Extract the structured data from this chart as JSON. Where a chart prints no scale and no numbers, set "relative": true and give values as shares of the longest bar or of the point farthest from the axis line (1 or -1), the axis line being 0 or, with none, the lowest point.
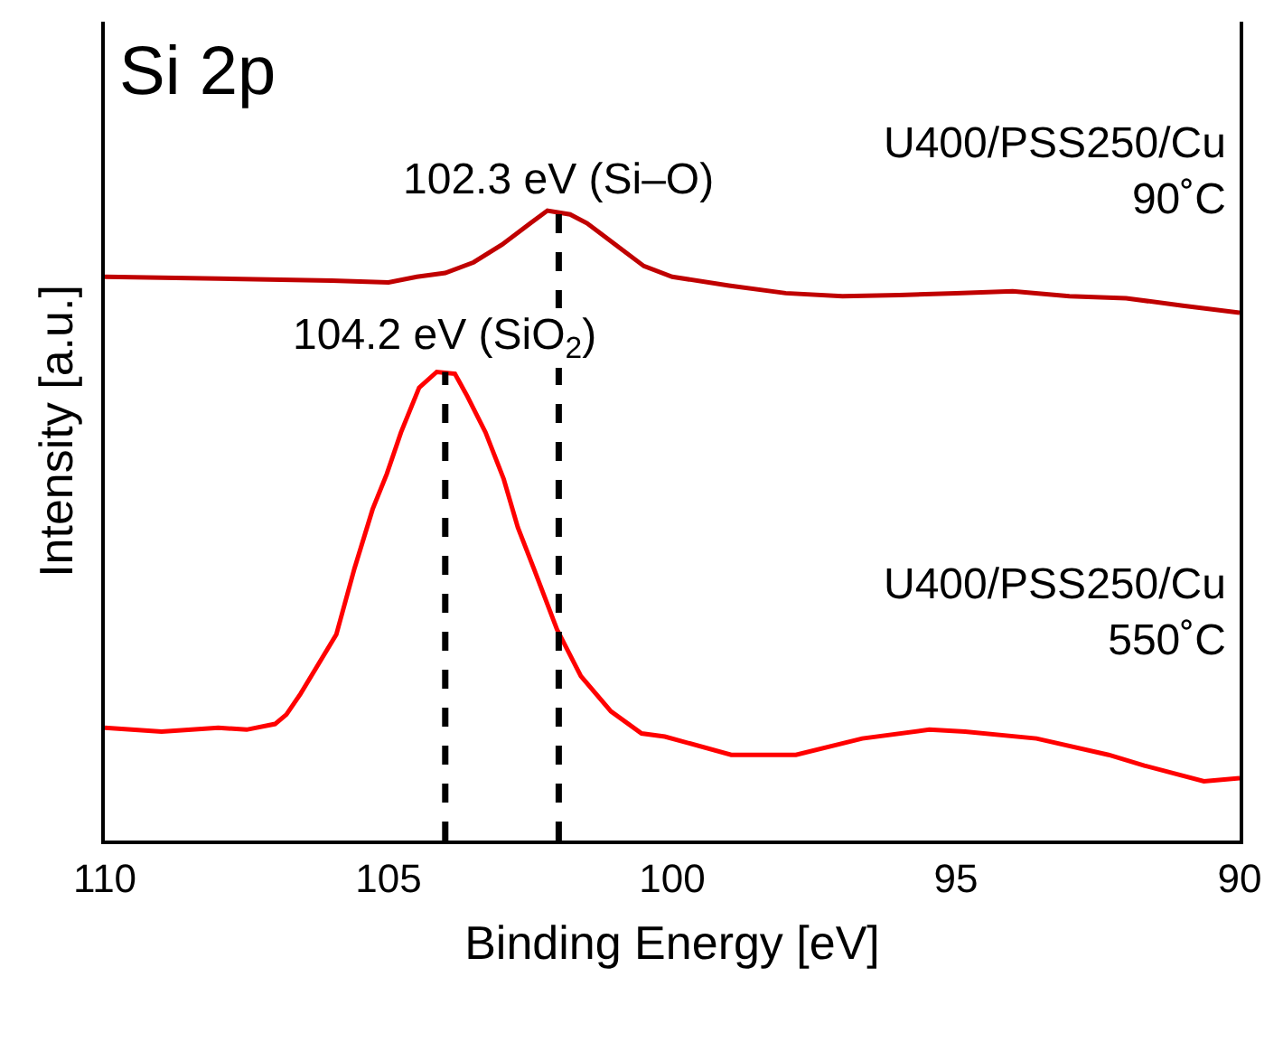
{
  "chart_data": {
    "type": "line",
    "relative": true,
    "xlabel": "Binding Energy [eV]",
    "ylabel": "Intensity [a.u.]",
    "xlim": [
      110,
      90
    ],
    "xticks": [
      110,
      105,
      100,
      95,
      90
    ],
    "tick_labels": "x",
    "legend": false,
    "marker": "none",
    "line_style": "solid",
    "series": [
      {
        "name": "U400/PSS250/Cu\n90˚C",
        "color": "#c00000",
        "x": [
          110,
          108,
          106,
          105,
          104.5,
          104,
          103.5,
          103,
          102.5,
          102.2,
          101.8,
          101.5,
          101,
          100.5,
          100,
          99,
          98,
          97,
          96,
          95,
          94,
          93,
          92,
          91,
          90
        ],
        "values": [
          0.895,
          0.892,
          0.889,
          0.886,
          0.895,
          0.901,
          0.918,
          0.946,
          0.98,
          1.0,
          0.994,
          0.98,
          0.946,
          0.912,
          0.895,
          0.881,
          0.869,
          0.864,
          0.866,
          0.869,
          0.872,
          0.864,
          0.861,
          0.849,
          0.838
        ]
      },
      {
        "name": "U400/PSS250/Cu\n550˚C",
        "color": "#ff0000",
        "x": [
          110,
          109,
          108,
          107.5,
          107,
          106.8,
          106.55,
          105.92,
          105.6,
          105.28,
          105.03,
          104.78,
          104.46,
          104.15,
          103.83,
          103.61,
          103.29,
          102.97,
          102.72,
          102.44,
          102.03,
          101.61,
          101.08,
          100.54,
          100.13,
          98.96,
          97.82,
          96.65,
          95.47,
          94.84,
          93.58,
          92.31,
          91.68,
          90.63,
          90
        ],
        "values": [
          0.179,
          0.173,
          0.179,
          0.176,
          0.185,
          0.2,
          0.233,
          0.327,
          0.432,
          0.526,
          0.582,
          0.648,
          0.719,
          0.744,
          0.741,
          0.705,
          0.648,
          0.574,
          0.497,
          0.432,
          0.335,
          0.261,
          0.205,
          0.17,
          0.165,
          0.136,
          0.136,
          0.162,
          0.176,
          0.173,
          0.162,
          0.136,
          0.119,
          0.094,
          0.099
        ]
      }
    ],
    "ref_lines": [
      {
        "axis": "x",
        "value": 104,
        "color": "#000000",
        "line_style": "dashed"
      },
      {
        "axis": "x",
        "value": 102,
        "color": "#000000",
        "line_style": "dashed"
      }
    ],
    "annotations": [
      "Si 2p",
      {
        "text": "102.3 eV (Si–O)",
        "x": 102,
        "y": 1.0
      },
      {
        "text": "104.2 eV (SiO$_{2}$)",
        "x": 104,
        "y": 0.744
      }
    ]
  }
}
